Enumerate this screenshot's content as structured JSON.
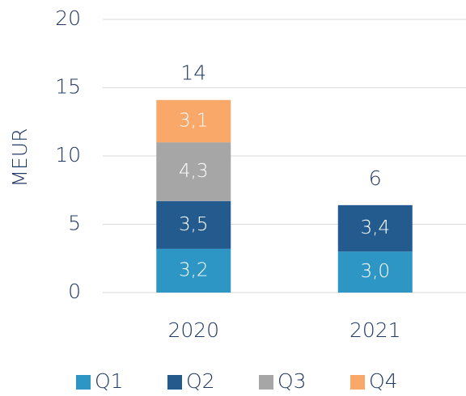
{
  "chart_data": {
    "type": "stacked_bar",
    "y_label": "MEUR",
    "categories": [
      "2020",
      "2021"
    ],
    "series": [
      {
        "name": "Q1",
        "color": "#2e96c5",
        "values": [
          3.2,
          3.0
        ],
        "value_labels": [
          "3,2",
          "3,0"
        ]
      },
      {
        "name": "Q2",
        "color": "#245b8f",
        "values": [
          3.5,
          3.4
        ],
        "value_labels": [
          "3,5",
          "3,4"
        ]
      },
      {
        "name": "Q3",
        "color": "#a6a6a6",
        "values": [
          4.3,
          null
        ],
        "value_labels": [
          "4,3",
          null
        ]
      },
      {
        "name": "Q4",
        "color": "#f9a86a",
        "values": [
          3.1,
          null
        ],
        "value_labels": [
          "3,1",
          null
        ]
      }
    ],
    "total_labels": [
      "14",
      "6"
    ],
    "ylim": [
      0,
      20
    ],
    "yticks": [
      0,
      5,
      10,
      15,
      20
    ],
    "grid": true,
    "legend": "bottom"
  }
}
